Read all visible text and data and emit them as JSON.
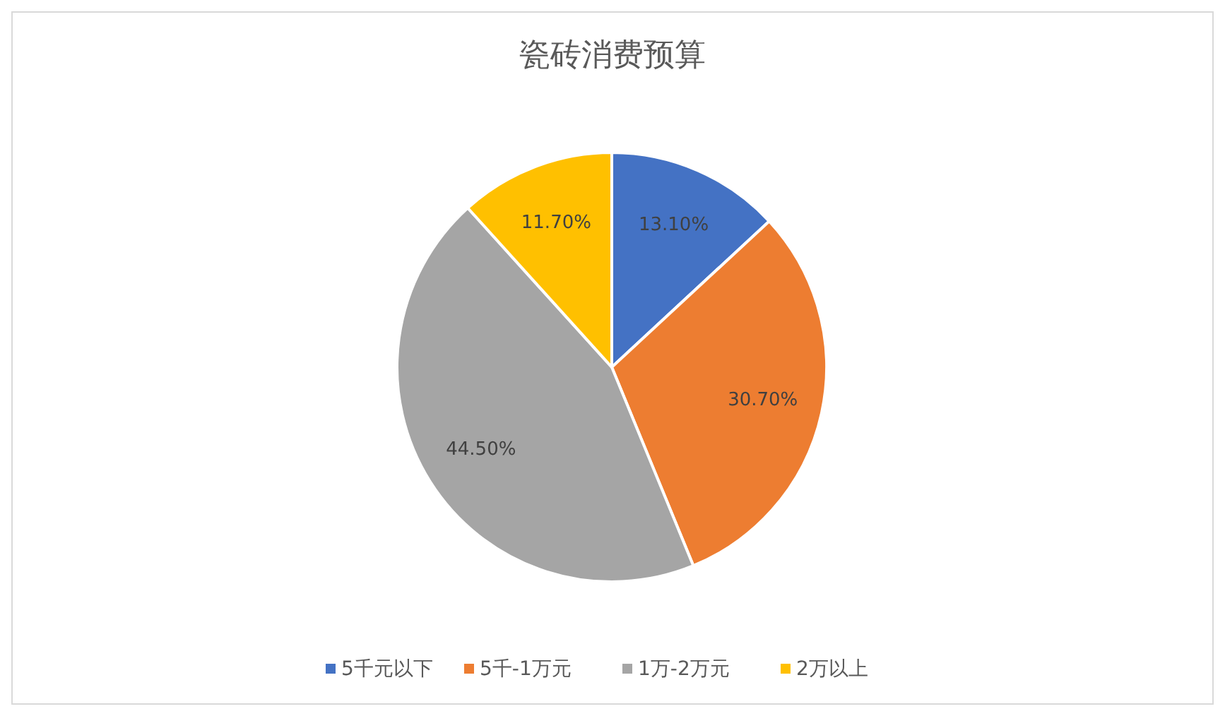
{
  "chart_data": {
    "type": "pie",
    "title": "瓷砖消费预算",
    "categories": [
      "5千元以下",
      "5千-1万元",
      "1万-2万元",
      "2万以上"
    ],
    "values": [
      13.1,
      30.7,
      44.5,
      11.7
    ],
    "value_labels": [
      "13.10%",
      "30.70%",
      "44.50%",
      "11.70%"
    ],
    "colors": [
      "#4472c4",
      "#ed7d31",
      "#a5a5a5",
      "#ffc000"
    ],
    "legend": "bottom"
  }
}
